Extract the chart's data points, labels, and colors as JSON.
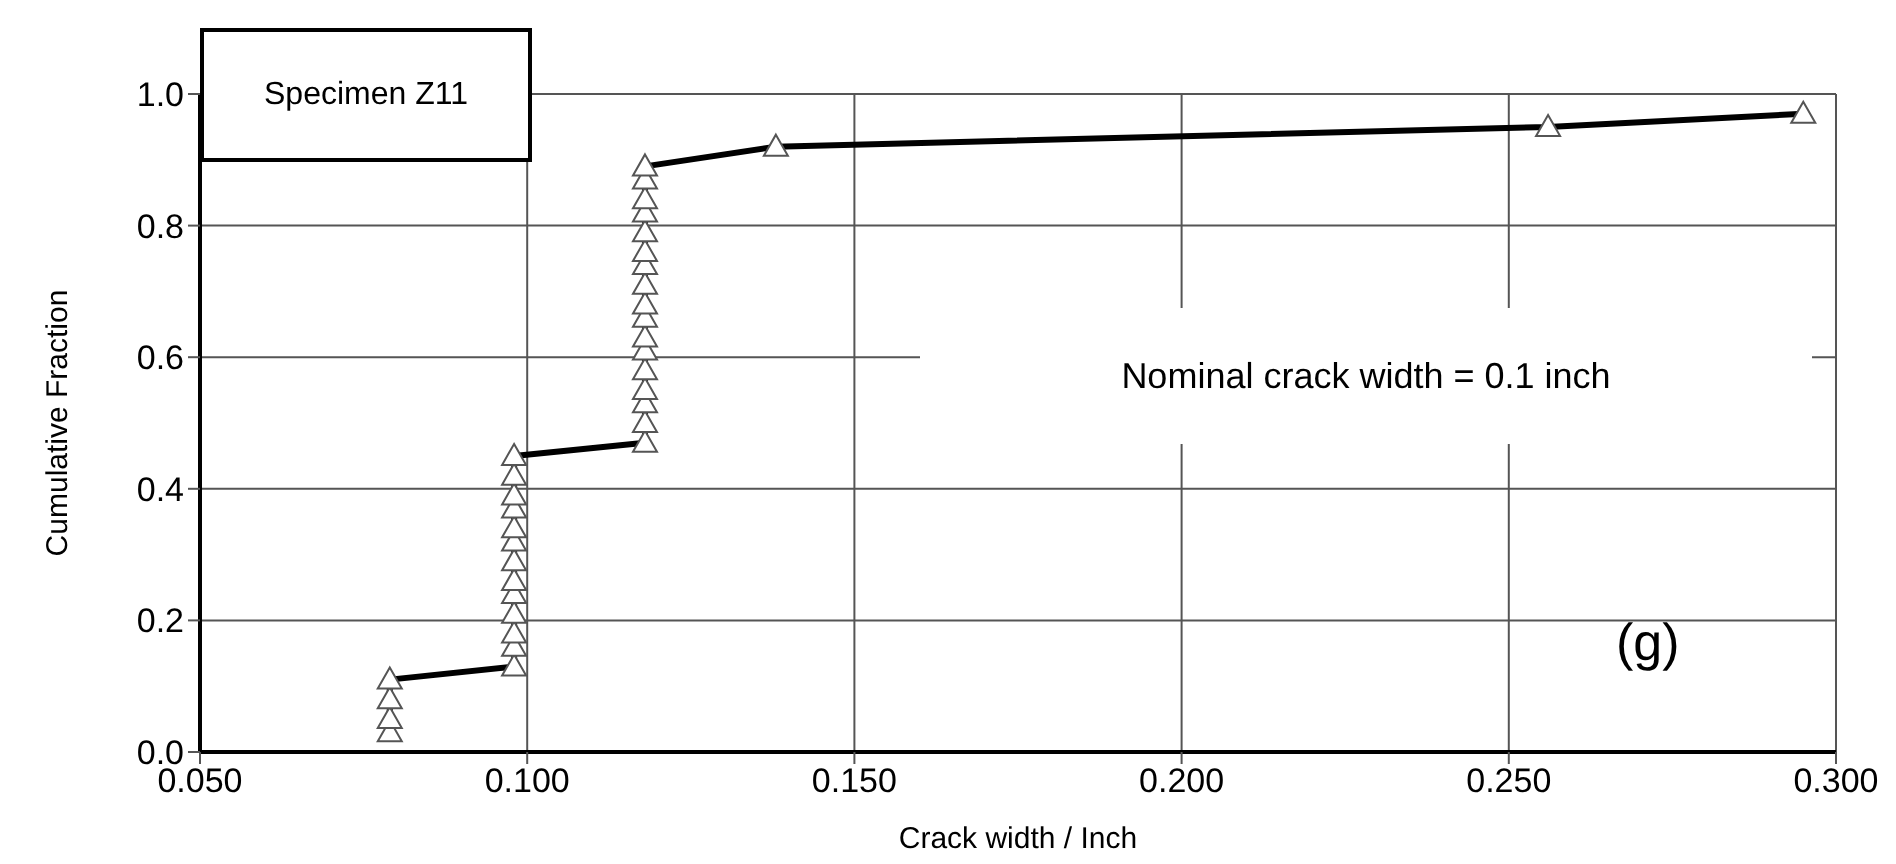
{
  "chart_data": {
    "type": "line",
    "xlabel": "Crack width / Inch",
    "ylabel": "Cumulative Fraction",
    "annotations": [
      "Specimen Z11",
      "Nominal crack width = 0.1 inch",
      "(g)"
    ],
    "x": [
      0.079,
      0.079,
      0.079,
      0.079,
      0.098,
      0.098,
      0.098,
      0.098,
      0.098,
      0.098,
      0.098,
      0.098,
      0.098,
      0.098,
      0.098,
      0.098,
      0.098,
      0.118,
      0.118,
      0.118,
      0.118,
      0.118,
      0.118,
      0.118,
      0.118,
      0.118,
      0.118,
      0.118,
      0.118,
      0.118,
      0.118,
      0.118,
      0.118,
      0.118,
      0.138,
      0.256,
      0.295
    ],
    "series": [
      {
        "color": "#000000",
        "values": [
          0.03,
          0.05,
          0.08,
          0.11,
          0.13,
          0.16,
          0.18,
          0.21,
          0.24,
          0.26,
          0.29,
          0.32,
          0.34,
          0.37,
          0.39,
          0.42,
          0.45,
          0.47,
          0.5,
          0.53,
          0.55,
          0.58,
          0.61,
          0.63,
          0.66,
          0.68,
          0.71,
          0.74,
          0.76,
          0.79,
          0.82,
          0.84,
          0.87,
          0.89,
          0.92,
          0.95,
          0.97
        ]
      }
    ],
    "xlim": [
      0.05,
      0.3
    ],
    "xticks": [
      {
        "value": 0.05,
        "label": "0.050"
      },
      {
        "value": 0.1,
        "label": "0.100"
      },
      {
        "value": 0.15,
        "label": "0.150"
      },
      {
        "value": 0.2,
        "label": "0.200"
      },
      {
        "value": 0.25,
        "label": "0.250"
      },
      {
        "value": 0.3,
        "label": "0.300"
      }
    ],
    "ylim": [
      0,
      1
    ],
    "yticks": [
      {
        "value": 0,
        "label": "0.0"
      },
      {
        "value": 0.2,
        "label": "0.2"
      },
      {
        "value": 0.4,
        "label": "0.4"
      },
      {
        "value": 0.6,
        "label": "0.6"
      },
      {
        "value": 0.8,
        "label": "0.8"
      },
      {
        "value": 1,
        "label": "1.0"
      }
    ],
    "grid": true,
    "legend": false,
    "marker": "triangle",
    "line_style": "solid"
  }
}
